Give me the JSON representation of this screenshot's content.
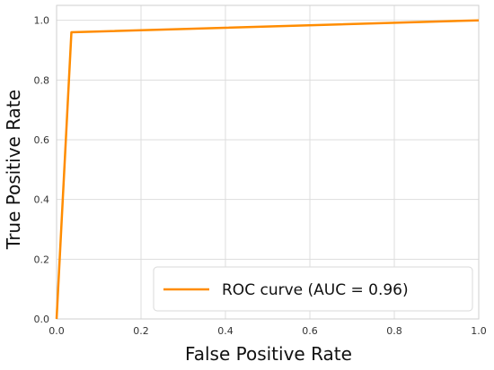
{
  "chart_data": {
    "type": "line",
    "xlabel": "False Positive Rate",
    "ylabel": "True Positive Rate",
    "xlim": [
      0,
      1
    ],
    "ylim": [
      0,
      1.05
    ],
    "x_ticks": [
      0.0,
      0.2,
      0.4,
      0.6,
      0.8,
      1.0
    ],
    "y_ticks": [
      0.0,
      0.2,
      0.4,
      0.6,
      0.8,
      1.0
    ],
    "x_tick_labels": [
      "0.0",
      "0.2",
      "0.4",
      "0.6",
      "0.8",
      "1.0"
    ],
    "y_tick_labels": [
      "0.0",
      "0.2",
      "0.4",
      "0.6",
      "0.8",
      "1.0"
    ],
    "grid": true,
    "legend_position": "bottom-right",
    "series": [
      {
        "name": "ROC curve (AUC = 0.96)",
        "color": "#ff8c00",
        "x": [
          0.0,
          0.035,
          1.0
        ],
        "y": [
          0.0,
          0.96,
          1.0
        ]
      }
    ]
  }
}
